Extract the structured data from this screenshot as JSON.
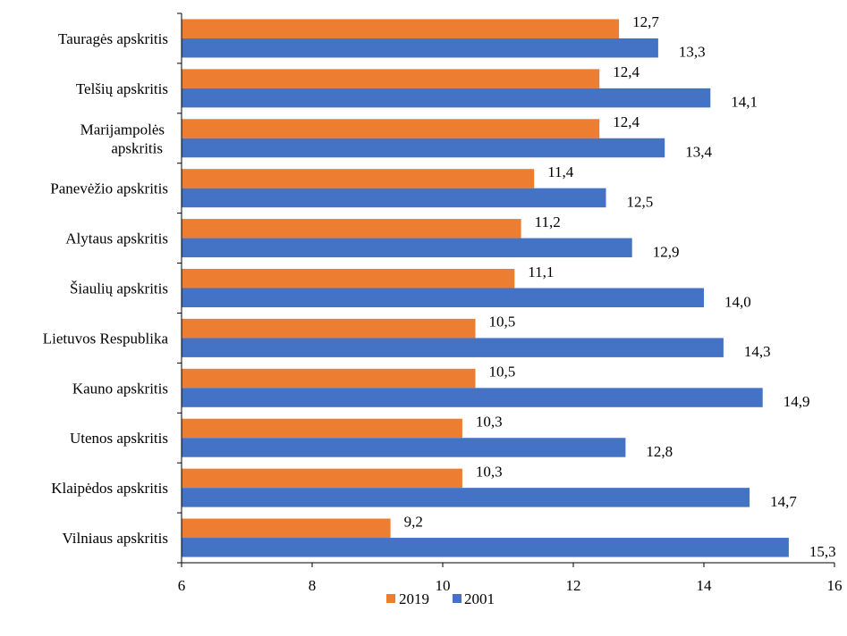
{
  "chart_data": {
    "type": "bar",
    "orientation": "horizontal",
    "categories": [
      "Tauragės apskritis",
      "Telšių apskritis",
      "Marijampolės apskritis",
      "Panevėžio apskritis",
      "Alytaus apskritis",
      "Šiaulių apskritis",
      "Lietuvos Respublika",
      "Kauno apskritis",
      "Utenos apskritis",
      "Klaipėdos apskritis",
      "Vilniaus apskritis"
    ],
    "category_lines": [
      [
        "Tauragės apskritis"
      ],
      [
        "Telšių apskritis"
      ],
      [
        "Marijampolės",
        "apskritis"
      ],
      [
        "Panevėžio apskritis"
      ],
      [
        "Alytaus apskritis"
      ],
      [
        "Šiaulių apskritis"
      ],
      [
        "Lietuvos Respublika"
      ],
      [
        "Kauno apskritis"
      ],
      [
        "Utenos apskritis"
      ],
      [
        "Klaipėdos apskritis"
      ],
      [
        "Vilniaus apskritis"
      ]
    ],
    "series": [
      {
        "name": "2019",
        "color": "#ED7D31",
        "values": [
          12.7,
          12.4,
          12.4,
          11.4,
          11.2,
          11.1,
          10.5,
          10.5,
          10.3,
          10.3,
          9.2
        ],
        "labels": [
          "12,7",
          "12,4",
          "12,4",
          "11,4",
          "11,2",
          "11,1",
          "10,5",
          "10,5",
          "10,3",
          "10,3",
          "9,2"
        ]
      },
      {
        "name": "2001",
        "color": "#4472C4",
        "values": [
          13.3,
          14.1,
          13.4,
          12.5,
          12.9,
          14.0,
          14.3,
          14.9,
          12.8,
          14.7,
          15.3
        ],
        "labels": [
          "13,3",
          "14,1",
          "13,4",
          "12,5",
          "12,9",
          "14,0",
          "14,3",
          "14,9",
          "12,8",
          "14,7",
          "15,3"
        ]
      }
    ],
    "xlim": [
      6,
      16
    ],
    "xticks": [
      6,
      8,
      10,
      12,
      14,
      16
    ],
    "xtick_labels": [
      "6",
      "8",
      "10",
      "12",
      "14",
      "16"
    ],
    "title": "",
    "xlabel": "",
    "ylabel": "",
    "grid": false,
    "legend_position": "bottom"
  }
}
